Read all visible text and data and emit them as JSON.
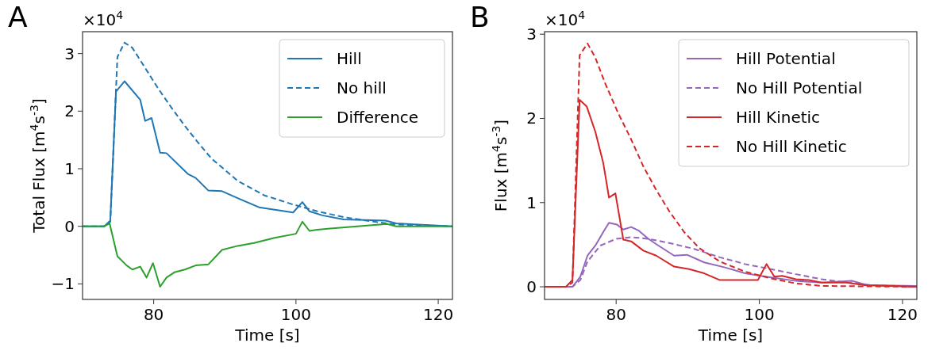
{
  "chart_data": [
    {
      "type": "line",
      "title": "A",
      "xlabel": "Time [s]",
      "ylabel": "Total Flux [m$^{4}$s$^{-3}$]",
      "annotations": [
        "×10$^{4}$"
      ],
      "xlim": [
        70,
        122
      ],
      "ylim": [
        -1.27,
        3.38
      ],
      "xticks": [
        80,
        100,
        120
      ],
      "yticks": [
        -1,
        0,
        1,
        2,
        3
      ],
      "legend": "top right",
      "series": [
        {
          "name": "Hill",
          "color": "#1f77b4",
          "line_style": "solid",
          "x": [
            70,
            73.05,
            73.9,
            74.7,
            75.9,
            78.1,
            78.8,
            79.7,
            80.9,
            81.8,
            84.8,
            85.9,
            87.7,
            89.6,
            91.8,
            94.8,
            99.6,
            100.9,
            101.9,
            103.7,
            106.7,
            112.6,
            114.1,
            122
          ],
          "values": [
            0,
            0,
            0.1,
            2.34,
            2.52,
            2.2,
            1.83,
            1.88,
            1.28,
            1.27,
            0.91,
            0.84,
            0.62,
            0.61,
            0.49,
            0.33,
            0.24,
            0.42,
            0.26,
            0.19,
            0.12,
            0.1,
            0.05,
            0
          ]
        },
        {
          "name": "No hill",
          "color": "#1f77b4",
          "line_style": "dashed",
          "x": [
            70,
            73.05,
            73.9,
            74.9,
            75.9,
            77,
            78.8,
            80.7,
            82.5,
            84.4,
            86.2,
            88.1,
            90,
            91.8,
            95.5,
            99.3,
            103,
            106.7,
            110.4,
            114.1,
            122
          ],
          "values": [
            0,
            0,
            0.08,
            2.94,
            3.19,
            3.1,
            2.75,
            2.38,
            2.06,
            1.74,
            1.46,
            1.18,
            0.98,
            0.79,
            0.54,
            0.39,
            0.26,
            0.16,
            0.09,
            0.03,
            0
          ]
        },
        {
          "name": "Difference",
          "color": "#2ca02c",
          "line_style": "solid",
          "x": [
            70,
            73.05,
            73.8,
            74.9,
            76.2,
            77,
            78.1,
            79,
            79.9,
            80.9,
            81.8,
            82.9,
            84.4,
            85.9,
            87.7,
            89.6,
            91.8,
            94.1,
            97,
            100,
            100.9,
            101.9,
            103,
            104.8,
            108.6,
            112.8,
            114.1,
            122
          ],
          "values": [
            0,
            0,
            0.05,
            -0.52,
            -0.68,
            -0.75,
            -0.7,
            -0.89,
            -0.64,
            -1.05,
            -0.89,
            -0.8,
            -0.75,
            -0.68,
            -0.66,
            -0.41,
            -0.34,
            -0.29,
            -0.2,
            -0.13,
            0.08,
            -0.08,
            -0.06,
            -0.04,
            0,
            0.04,
            0,
            0
          ]
        }
      ]
    },
    {
      "type": "line",
      "title": "B",
      "xlabel": "Time [s]",
      "ylabel": "Flux [m$^{4}$s$^{-3}$]",
      "annotations": [
        "×10$^{4}$"
      ],
      "xlim": [
        70,
        122
      ],
      "ylim": [
        -0.15,
        3.03
      ],
      "xticks": [
        80,
        100,
        120
      ],
      "yticks": [
        0,
        1,
        2,
        3
      ],
      "legend": "top right",
      "series": [
        {
          "name": "Hill Potential",
          "color": "#9467bd",
          "line_style": "solid",
          "x": [
            70,
            73.9,
            75,
            76,
            77.1,
            78.2,
            79,
            80.1,
            81,
            82.1,
            83.1,
            84.5,
            85.9,
            88.1,
            89.9,
            92.3,
            95.2,
            98,
            100.9,
            105.1,
            108.7,
            113,
            115.1,
            122
          ],
          "values": [
            0,
            0,
            0.12,
            0.37,
            0.49,
            0.65,
            0.76,
            0.74,
            0.68,
            0.71,
            0.67,
            0.57,
            0.49,
            0.37,
            0.38,
            0.29,
            0.23,
            0.16,
            0.12,
            0.07,
            0.05,
            0.07,
            0.02,
            0.01
          ]
        },
        {
          "name": "No Hill Potential",
          "color": "#9467bd",
          "line_style": "dashed",
          "x": [
            70,
            73.9,
            75,
            76,
            77.8,
            80,
            82.1,
            84.5,
            87.4,
            90.9,
            94.5,
            98,
            101.6,
            105.1,
            108.7,
            112.2,
            115.7,
            122
          ],
          "values": [
            0,
            0,
            0.08,
            0.3,
            0.49,
            0.57,
            0.59,
            0.57,
            0.52,
            0.45,
            0.35,
            0.27,
            0.21,
            0.15,
            0.09,
            0.05,
            0.02,
            0
          ]
        },
        {
          "name": "Hill Kinetic",
          "color": "#d62728",
          "line_style": "solid",
          "x": [
            70,
            73,
            73.9,
            74.9,
            75.9,
            77.1,
            78.2,
            79,
            79.9,
            81,
            82.1,
            83.8,
            85.6,
            88.1,
            90.2,
            92.3,
            94.5,
            99.8,
            101,
            102.1,
            103.2,
            105.1,
            106.9,
            108.7,
            112.2,
            114.7,
            122
          ],
          "values": [
            0,
            0,
            0.08,
            2.22,
            2.14,
            1.84,
            1.47,
            1.06,
            1.11,
            0.56,
            0.54,
            0.43,
            0.37,
            0.24,
            0.21,
            0.16,
            0.08,
            0.08,
            0.27,
            0.12,
            0.13,
            0.09,
            0.08,
            0.05,
            0.05,
            0.02,
            0
          ]
        },
        {
          "name": "No Hill Kinetic",
          "color": "#d62728",
          "line_style": "dashed",
          "x": [
            70,
            73,
            73.9,
            74.9,
            76,
            77.1,
            78.5,
            80.3,
            82.1,
            83.8,
            85.6,
            87.4,
            89.5,
            91.6,
            94.5,
            98,
            101.6,
            105.1,
            108.7,
            122
          ],
          "values": [
            0,
            0,
            0.05,
            2.75,
            2.89,
            2.72,
            2.41,
            2.06,
            1.75,
            1.43,
            1.15,
            0.9,
            0.65,
            0.46,
            0.3,
            0.18,
            0.1,
            0.04,
            0.01,
            0
          ]
        }
      ]
    }
  ]
}
